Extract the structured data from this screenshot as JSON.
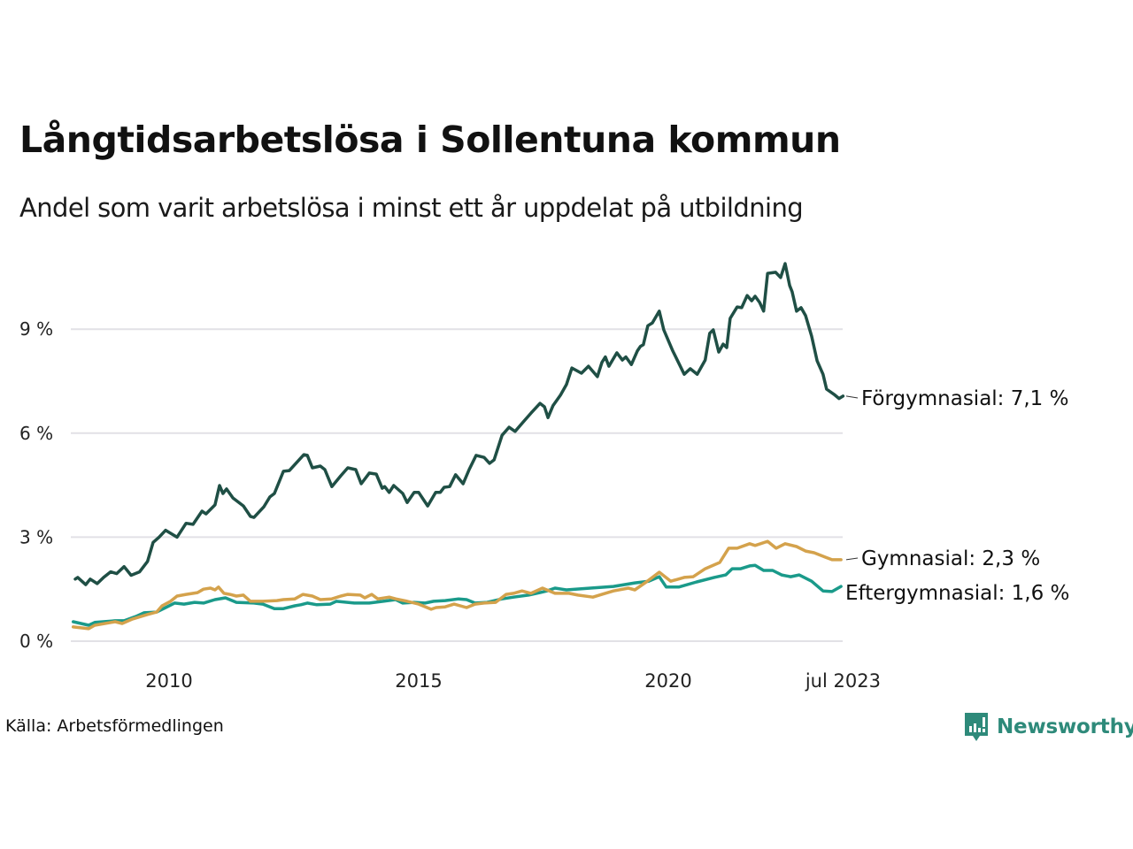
{
  "header": {
    "title": "Långtidsarbetslösa i Sollentuna kommun",
    "subtitle": "Andel som varit arbetslösa i minst ett år uppdelat på utbildning"
  },
  "footer": {
    "source": "Källa: Arbetsförmedlingen",
    "brand": "Newsworthy",
    "brand_icon": "newsworthy-logo-icon",
    "brand_color": "#2e8a7a"
  },
  "chart_data": {
    "type": "line",
    "title": "Långtidsarbetslösa i Sollentuna kommun",
    "subtitle": "Andel som varit arbetslösa i minst ett år uppdelat på utbildning",
    "xlabel": "",
    "ylabel": "",
    "xlim": [
      2008.05,
      2023.5
    ],
    "ylim": [
      0,
      11
    ],
    "grid": true,
    "legend": "end-labels-right",
    "y_ticks": [
      {
        "value": 0,
        "label": "0 %"
      },
      {
        "value": 3,
        "label": "3 %"
      },
      {
        "value": 6,
        "label": "6 %"
      },
      {
        "value": 9,
        "label": "9 %"
      }
    ],
    "x_ticks": [
      {
        "value": 2010.0,
        "label": "2010"
      },
      {
        "value": 2015.0,
        "label": "2015"
      },
      {
        "value": 2020.0,
        "label": "2020"
      },
      {
        "value": 2023.5,
        "label": "jul 2023"
      }
    ],
    "series": [
      {
        "name": "Förgymnasial",
        "end_label": "Förgymnasial: 7,1 %",
        "color": "#1f4f45",
        "points": [
          [
            2008.12,
            1.79
          ],
          [
            2008.17,
            1.84
          ],
          [
            2008.33,
            1.63
          ],
          [
            2008.42,
            1.79
          ],
          [
            2008.56,
            1.66
          ],
          [
            2008.69,
            1.84
          ],
          [
            2008.83,
            2.0
          ],
          [
            2008.95,
            1.95
          ],
          [
            2009.1,
            2.15
          ],
          [
            2009.24,
            1.9
          ],
          [
            2009.41,
            2.0
          ],
          [
            2009.57,
            2.3
          ],
          [
            2009.68,
            2.85
          ],
          [
            2009.8,
            3.0
          ],
          [
            2009.93,
            3.2
          ],
          [
            2010.16,
            3.0
          ],
          [
            2010.34,
            3.4
          ],
          [
            2010.48,
            3.37
          ],
          [
            2010.66,
            3.75
          ],
          [
            2010.74,
            3.67
          ],
          [
            2010.92,
            3.93
          ],
          [
            2011.01,
            4.49
          ],
          [
            2011.08,
            4.26
          ],
          [
            2011.15,
            4.39
          ],
          [
            2011.28,
            4.13
          ],
          [
            2011.49,
            3.9
          ],
          [
            2011.63,
            3.6
          ],
          [
            2011.7,
            3.57
          ],
          [
            2011.9,
            3.88
          ],
          [
            2012.02,
            4.16
          ],
          [
            2012.11,
            4.26
          ],
          [
            2012.29,
            4.9
          ],
          [
            2012.41,
            4.92
          ],
          [
            2012.7,
            5.38
          ],
          [
            2012.77,
            5.36
          ],
          [
            2012.87,
            5.0
          ],
          [
            2013.03,
            5.05
          ],
          [
            2013.12,
            4.95
          ],
          [
            2013.26,
            4.46
          ],
          [
            2013.44,
            4.77
          ],
          [
            2013.58,
            5.0
          ],
          [
            2013.74,
            4.95
          ],
          [
            2013.85,
            4.54
          ],
          [
            2014.01,
            4.85
          ],
          [
            2014.15,
            4.82
          ],
          [
            2014.27,
            4.41
          ],
          [
            2014.32,
            4.46
          ],
          [
            2014.41,
            4.29
          ],
          [
            2014.5,
            4.49
          ],
          [
            2014.68,
            4.26
          ],
          [
            2014.77,
            4.0
          ],
          [
            2014.91,
            4.29
          ],
          [
            2015.0,
            4.29
          ],
          [
            2015.18,
            3.9
          ],
          [
            2015.34,
            4.29
          ],
          [
            2015.43,
            4.29
          ],
          [
            2015.51,
            4.44
          ],
          [
            2015.62,
            4.46
          ],
          [
            2015.74,
            4.8
          ],
          [
            2015.89,
            4.54
          ],
          [
            2016.01,
            4.95
          ],
          [
            2016.15,
            5.36
          ],
          [
            2016.31,
            5.3
          ],
          [
            2016.42,
            5.13
          ],
          [
            2016.51,
            5.23
          ],
          [
            2016.67,
            5.94
          ],
          [
            2016.81,
            6.17
          ],
          [
            2016.93,
            6.05
          ],
          [
            2017.11,
            6.35
          ],
          [
            2017.25,
            6.58
          ],
          [
            2017.43,
            6.86
          ],
          [
            2017.52,
            6.76
          ],
          [
            2017.59,
            6.45
          ],
          [
            2017.69,
            6.79
          ],
          [
            2017.84,
            7.1
          ],
          [
            2017.96,
            7.4
          ],
          [
            2018.07,
            7.88
          ],
          [
            2018.26,
            7.73
          ],
          [
            2018.4,
            7.93
          ],
          [
            2018.58,
            7.63
          ],
          [
            2018.67,
            8.04
          ],
          [
            2018.74,
            8.2
          ],
          [
            2018.81,
            7.93
          ],
          [
            2018.97,
            8.32
          ],
          [
            2019.08,
            8.11
          ],
          [
            2019.15,
            8.2
          ],
          [
            2019.26,
            7.98
          ],
          [
            2019.38,
            8.37
          ],
          [
            2019.44,
            8.5
          ],
          [
            2019.5,
            8.55
          ],
          [
            2019.59,
            9.1
          ],
          [
            2019.68,
            9.18
          ],
          [
            2019.82,
            9.52
          ],
          [
            2019.91,
            8.98
          ],
          [
            2020.09,
            8.37
          ],
          [
            2020.32,
            7.7
          ],
          [
            2020.44,
            7.86
          ],
          [
            2020.58,
            7.7
          ],
          [
            2020.74,
            8.11
          ],
          [
            2020.83,
            8.88
          ],
          [
            2020.9,
            8.98
          ],
          [
            2021.01,
            8.34
          ],
          [
            2021.1,
            8.57
          ],
          [
            2021.17,
            8.47
          ],
          [
            2021.24,
            9.31
          ],
          [
            2021.38,
            9.64
          ],
          [
            2021.47,
            9.62
          ],
          [
            2021.58,
            9.97
          ],
          [
            2021.67,
            9.82
          ],
          [
            2021.74,
            9.95
          ],
          [
            2021.83,
            9.77
          ],
          [
            2021.91,
            9.52
          ],
          [
            2021.99,
            10.61
          ],
          [
            2022.15,
            10.64
          ],
          [
            2022.25,
            10.49
          ],
          [
            2022.34,
            10.89
          ],
          [
            2022.43,
            10.26
          ],
          [
            2022.48,
            10.08
          ],
          [
            2022.57,
            9.52
          ],
          [
            2022.66,
            9.62
          ],
          [
            2022.75,
            9.39
          ],
          [
            2022.87,
            8.8
          ],
          [
            2022.98,
            8.09
          ],
          [
            2023.1,
            7.7
          ],
          [
            2023.17,
            7.27
          ],
          [
            2023.32,
            7.12
          ],
          [
            2023.42,
            7.0
          ],
          [
            2023.5,
            7.07
          ]
        ]
      },
      {
        "name": "Gymnasial",
        "end_label": "Gymnasial: 2,3 %",
        "color": "#d4a24c",
        "points": [
          [
            2008.08,
            0.41
          ],
          [
            2008.39,
            0.36
          ],
          [
            2008.51,
            0.46
          ],
          [
            2008.92,
            0.56
          ],
          [
            2009.06,
            0.51
          ],
          [
            2009.27,
            0.64
          ],
          [
            2009.57,
            0.77
          ],
          [
            2009.75,
            0.84
          ],
          [
            2009.86,
            1.02
          ],
          [
            2010.03,
            1.15
          ],
          [
            2010.16,
            1.3
          ],
          [
            2010.34,
            1.35
          ],
          [
            2010.57,
            1.4
          ],
          [
            2010.69,
            1.5
          ],
          [
            2010.83,
            1.53
          ],
          [
            2010.92,
            1.48
          ],
          [
            2010.99,
            1.56
          ],
          [
            2011.1,
            1.38
          ],
          [
            2011.22,
            1.35
          ],
          [
            2011.35,
            1.3
          ],
          [
            2011.49,
            1.33
          ],
          [
            2011.63,
            1.15
          ],
          [
            2011.88,
            1.15
          ],
          [
            2012.16,
            1.17
          ],
          [
            2012.29,
            1.2
          ],
          [
            2012.52,
            1.22
          ],
          [
            2012.68,
            1.35
          ],
          [
            2012.87,
            1.3
          ],
          [
            2013.03,
            1.2
          ],
          [
            2013.26,
            1.22
          ],
          [
            2013.44,
            1.3
          ],
          [
            2013.58,
            1.35
          ],
          [
            2013.83,
            1.33
          ],
          [
            2013.92,
            1.25
          ],
          [
            2014.06,
            1.35
          ],
          [
            2014.18,
            1.22
          ],
          [
            2014.41,
            1.27
          ],
          [
            2014.54,
            1.22
          ],
          [
            2014.77,
            1.15
          ],
          [
            2015.0,
            1.07
          ],
          [
            2015.25,
            0.92
          ],
          [
            2015.35,
            0.97
          ],
          [
            2015.53,
            0.99
          ],
          [
            2015.71,
            1.07
          ],
          [
            2015.96,
            0.97
          ],
          [
            2016.13,
            1.07
          ],
          [
            2016.31,
            1.1
          ],
          [
            2016.54,
            1.12
          ],
          [
            2016.75,
            1.35
          ],
          [
            2016.9,
            1.38
          ],
          [
            2017.07,
            1.45
          ],
          [
            2017.25,
            1.38
          ],
          [
            2017.48,
            1.53
          ],
          [
            2017.73,
            1.38
          ],
          [
            2018.01,
            1.38
          ],
          [
            2018.19,
            1.33
          ],
          [
            2018.49,
            1.27
          ],
          [
            2018.67,
            1.35
          ],
          [
            2018.9,
            1.45
          ],
          [
            2019.2,
            1.53
          ],
          [
            2019.33,
            1.48
          ],
          [
            2019.56,
            1.71
          ],
          [
            2019.82,
            1.99
          ],
          [
            2020.05,
            1.73
          ],
          [
            2020.32,
            1.84
          ],
          [
            2020.5,
            1.86
          ],
          [
            2020.74,
            2.09
          ],
          [
            2021.03,
            2.27
          ],
          [
            2021.21,
            2.68
          ],
          [
            2021.38,
            2.68
          ],
          [
            2021.63,
            2.81
          ],
          [
            2021.74,
            2.76
          ],
          [
            2021.99,
            2.88
          ],
          [
            2022.16,
            2.68
          ],
          [
            2022.34,
            2.81
          ],
          [
            2022.57,
            2.73
          ],
          [
            2022.75,
            2.6
          ],
          [
            2022.92,
            2.55
          ],
          [
            2023.15,
            2.42
          ],
          [
            2023.28,
            2.35
          ],
          [
            2023.46,
            2.35
          ]
        ]
      },
      {
        "name": "Eftergymnasial",
        "end_label": "Eftergymnasial: 1,6 %",
        "color": "#1a9a8a",
        "points": [
          [
            2008.08,
            0.56
          ],
          [
            2008.39,
            0.46
          ],
          [
            2008.51,
            0.54
          ],
          [
            2008.92,
            0.59
          ],
          [
            2009.1,
            0.59
          ],
          [
            2009.33,
            0.71
          ],
          [
            2009.5,
            0.82
          ],
          [
            2009.75,
            0.84
          ],
          [
            2009.93,
            0.97
          ],
          [
            2010.11,
            1.1
          ],
          [
            2010.3,
            1.07
          ],
          [
            2010.51,
            1.12
          ],
          [
            2010.69,
            1.1
          ],
          [
            2010.92,
            1.2
          ],
          [
            2011.13,
            1.25
          ],
          [
            2011.35,
            1.12
          ],
          [
            2011.7,
            1.1
          ],
          [
            2011.88,
            1.07
          ],
          [
            2012.11,
            0.94
          ],
          [
            2012.29,
            0.94
          ],
          [
            2012.52,
            1.02
          ],
          [
            2012.64,
            1.05
          ],
          [
            2012.77,
            1.1
          ],
          [
            2012.96,
            1.05
          ],
          [
            2013.23,
            1.07
          ],
          [
            2013.35,
            1.15
          ],
          [
            2013.71,
            1.1
          ],
          [
            2014.01,
            1.1
          ],
          [
            2014.29,
            1.15
          ],
          [
            2014.54,
            1.2
          ],
          [
            2014.68,
            1.1
          ],
          [
            2014.91,
            1.12
          ],
          [
            2015.13,
            1.1
          ],
          [
            2015.3,
            1.15
          ],
          [
            2015.53,
            1.17
          ],
          [
            2015.8,
            1.22
          ],
          [
            2015.96,
            1.2
          ],
          [
            2016.13,
            1.1
          ],
          [
            2016.37,
            1.12
          ],
          [
            2016.67,
            1.22
          ],
          [
            2016.9,
            1.27
          ],
          [
            2017.2,
            1.33
          ],
          [
            2017.43,
            1.4
          ],
          [
            2017.57,
            1.45
          ],
          [
            2017.73,
            1.53
          ],
          [
            2017.96,
            1.48
          ],
          [
            2018.44,
            1.53
          ],
          [
            2018.9,
            1.58
          ],
          [
            2019.33,
            1.68
          ],
          [
            2019.61,
            1.73
          ],
          [
            2019.82,
            1.86
          ],
          [
            2019.96,
            1.56
          ],
          [
            2020.21,
            1.56
          ],
          [
            2020.57,
            1.71
          ],
          [
            2020.92,
            1.84
          ],
          [
            2021.15,
            1.91
          ],
          [
            2021.28,
            2.09
          ],
          [
            2021.45,
            2.09
          ],
          [
            2021.63,
            2.17
          ],
          [
            2021.74,
            2.19
          ],
          [
            2021.91,
            2.04
          ],
          [
            2022.09,
            2.04
          ],
          [
            2022.27,
            1.91
          ],
          [
            2022.45,
            1.86
          ],
          [
            2022.62,
            1.91
          ],
          [
            2022.87,
            1.73
          ],
          [
            2023.1,
            1.45
          ],
          [
            2023.28,
            1.43
          ],
          [
            2023.46,
            1.58
          ]
        ]
      }
    ]
  }
}
